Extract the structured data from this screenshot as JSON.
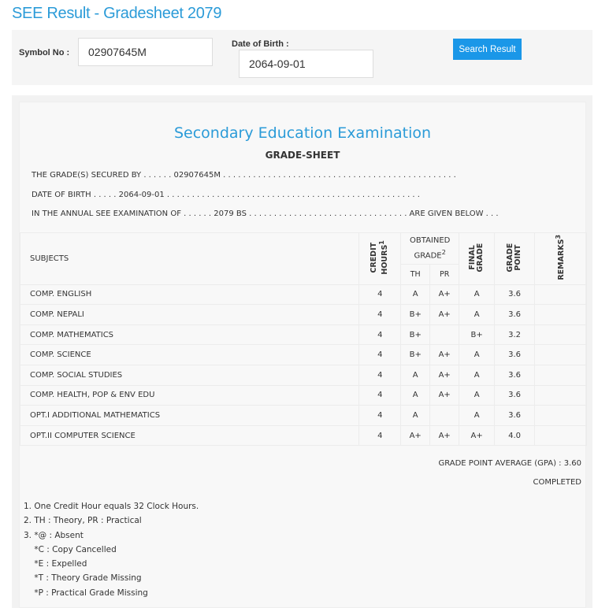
{
  "page_title": "SEE Result - Gradesheet 2079",
  "search": {
    "symbol_label": "Symbol No :",
    "symbol_value": "02907645M",
    "dob_label": "Date of Birth :",
    "dob_value": "2064-09-01",
    "button_label": "Search Result"
  },
  "sheet": {
    "exam_title": "Secondary Education Examination",
    "sheet_title": "GRADE-SHEET",
    "line1": "THE GRADE(S) SECURED BY . . . . . . 02907645M . . . . . . . . . . . . . . . . . . . . . . . . . . . . . . . . . . . . . . . . . . . . . . .",
    "line2": "DATE OF BIRTH . . . . . 2064-09-01 . . . . . . . . . . . . . . . . . . . . . . . . . . . . . . . . . . . . . . . . . . . . . . . . . . .",
    "line3": "IN THE ANNUAL SEE EXAMINATION OF . . . . . . 2079 BS . . . . . . . . . . . . . . . . . . . . . . . . . . . . . . . . ARE GIVEN BELOW . . .",
    "headers": {
      "subjects": "SUBJECTS",
      "credit_hours": "CREDIT HOURS",
      "credit_sup": "1",
      "obtained_grade": "OBTAINED GRADE",
      "obtained_sup": "2",
      "th": "TH",
      "pr": "PR",
      "final_grade": "FINAL GRADE",
      "grade_point": "GRADE POINT",
      "remarks": "REMARKS",
      "remarks_sup": "3"
    },
    "rows": [
      {
        "subject": "COMP. ENGLISH",
        "credit": "4",
        "th": "A",
        "pr": "A+",
        "final": "A",
        "gp": "3.6",
        "remarks": ""
      },
      {
        "subject": "COMP. NEPALI",
        "credit": "4",
        "th": "B+",
        "pr": "A+",
        "final": "A",
        "gp": "3.6",
        "remarks": ""
      },
      {
        "subject": "COMP. MATHEMATICS",
        "credit": "4",
        "th": "B+",
        "pr": "",
        "final": "B+",
        "gp": "3.2",
        "remarks": ""
      },
      {
        "subject": "COMP. SCIENCE",
        "credit": "4",
        "th": "B+",
        "pr": "A+",
        "final": "A",
        "gp": "3.6",
        "remarks": ""
      },
      {
        "subject": "COMP. SOCIAL STUDIES",
        "credit": "4",
        "th": "A",
        "pr": "A+",
        "final": "A",
        "gp": "3.6",
        "remarks": ""
      },
      {
        "subject": "COMP. HEALTH, POP & ENV EDU",
        "credit": "4",
        "th": "A",
        "pr": "A+",
        "final": "A",
        "gp": "3.6",
        "remarks": ""
      },
      {
        "subject": "OPT.I ADDITIONAL MATHEMATICS",
        "credit": "4",
        "th": "A",
        "pr": "",
        "final": "A",
        "gp": "3.6",
        "remarks": ""
      },
      {
        "subject": "OPT.II COMPUTER SCIENCE",
        "credit": "4",
        "th": "A+",
        "pr": "A+",
        "final": "A+",
        "gp": "4.0",
        "remarks": ""
      }
    ],
    "gpa": "GRADE POINT AVERAGE (GPA) : 3.60",
    "status": "COMPLETED",
    "notes": [
      "1. One Credit Hour equals 32 Clock Hours.",
      "2. TH : Theory, PR : Practical",
      "3. *@ : Absent",
      "    *C : Copy Cancelled",
      "    *E : Expelled",
      "    *T : Theory Grade Missing",
      "    *P : Practical Grade Missing"
    ]
  }
}
